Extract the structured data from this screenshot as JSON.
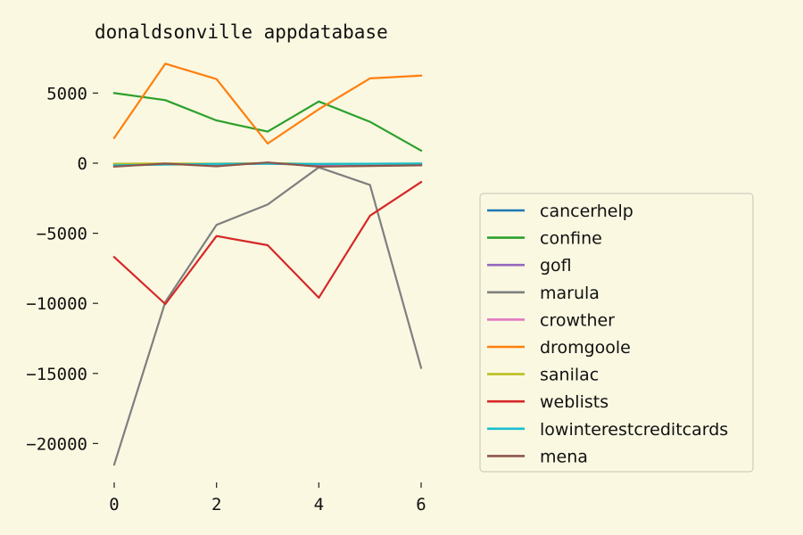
{
  "chart_data": {
    "type": "line",
    "title": "donaldsonville appdatabase",
    "xlabel": "",
    "ylabel": "",
    "x": [
      0,
      1,
      2,
      3,
      4,
      5,
      6
    ],
    "xlim": [
      0,
      6
    ],
    "ylim": [
      -22500,
      7500
    ],
    "xticks": [
      0,
      2,
      4,
      6
    ],
    "yticks": [
      5000,
      0,
      -5000,
      -10000,
      -15000,
      -20000
    ],
    "xtick_labels": [
      "0",
      "2",
      "4",
      "6"
    ],
    "ytick_labels": [
      "5000",
      "0",
      "−5000",
      "−10000",
      "−15000",
      "−20000"
    ],
    "grid": false,
    "legend_position": "center-right",
    "series": [
      {
        "name": "cancerhelp",
        "color": "#1f77b4",
        "values": [
          -100,
          -50,
          -80,
          -30,
          -120,
          -90,
          -60
        ]
      },
      {
        "name": "confine",
        "color": "#2ca02c",
        "values": [
          5000,
          4500,
          3050,
          2250,
          4400,
          2950,
          900
        ]
      },
      {
        "name": "gofl",
        "color": "#9467bd",
        "values": [
          -80,
          -40,
          -60,
          -20,
          -100,
          -70,
          -50
        ]
      },
      {
        "name": "marula",
        "color": "#7f7f7f",
        "values": [
          -21500,
          -9900,
          -4400,
          -2950,
          -300,
          -1550,
          -14600
        ]
      },
      {
        "name": "crowther",
        "color": "#e377c2",
        "values": [
          -60,
          -30,
          -50,
          -10,
          -80,
          -60,
          -40
        ]
      },
      {
        "name": "dromgoole",
        "color": "#ff7f0e",
        "values": [
          1800,
          7100,
          6000,
          1400,
          3850,
          6050,
          6250
        ]
      },
      {
        "name": "sanilac",
        "color": "#bcbd22",
        "values": [
          -40,
          -20,
          -30,
          0,
          -50,
          -40,
          -30
        ]
      },
      {
        "name": "weblists",
        "color": "#d62728",
        "values": [
          -6700,
          -10050,
          -5200,
          -5850,
          -9600,
          -3750,
          -1350
        ]
      },
      {
        "name": "lowinterestcreditcards",
        "color": "#17becf",
        "values": [
          -150,
          -100,
          -50,
          -30,
          -60,
          -40,
          -20
        ]
      },
      {
        "name": "mena",
        "color": "#8c564b",
        "values": [
          -250,
          -30,
          -220,
          50,
          -250,
          -200,
          -150
        ]
      }
    ]
  }
}
